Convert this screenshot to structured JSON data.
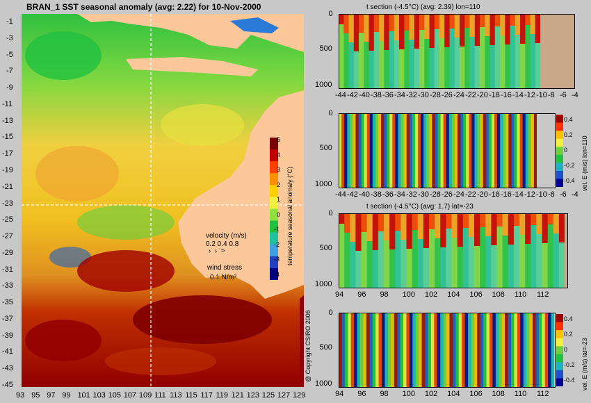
{
  "map": {
    "title": "BRAN_1 SST seasonal anomaly (avg: 2.22) for 10-Nov-2000",
    "lat_ticks": [
      "-1",
      "-3",
      "-5",
      "-7",
      "-9",
      "-11",
      "-13",
      "-15",
      "-17",
      "-19",
      "-21",
      "-23",
      "-25",
      "-27",
      "-29",
      "-31",
      "-33",
      "-35",
      "-37",
      "-39",
      "-41",
      "-43",
      "-45"
    ],
    "lon_ticks": [
      "93",
      "95",
      "97",
      "99",
      "101",
      "103",
      "105",
      "107",
      "109",
      "111",
      "113",
      "115",
      "117",
      "119",
      "121",
      "123",
      "125",
      "127",
      "129"
    ],
    "colorbar": {
      "label": "temperature seasonal anomaly (°C)",
      "ticks": [
        "5",
        "4",
        "3",
        "2",
        "1",
        "0",
        "-1",
        "-2",
        "-3",
        "-4"
      ],
      "colors": [
        "#7a0000",
        "#c00000",
        "#ff4000",
        "#ff9000",
        "#ffd000",
        "#f0f040",
        "#90e040",
        "#20c040",
        "#20c0a0",
        "#40a0e0",
        "#2040c0",
        "#000080"
      ]
    },
    "legend": {
      "velocity_label": "velocity (m/s)",
      "velocity_values": "0.2 0.4 0.8",
      "wind_label": "wind stress",
      "wind_value": "0.1 N/m²"
    },
    "land_color": "#fcc89a",
    "copyright": "@ Copyright CSIRO 2006"
  },
  "panels": [
    {
      "title": "t section (-4.5°C) (avg: 2.39) lon=110",
      "y_ticks": [
        "0",
        "500",
        "1000"
      ],
      "x_ticks": [
        "-44",
        "-42",
        "-40",
        "-38",
        "-36",
        "-34",
        "-32",
        "-30",
        "-28",
        "-26",
        "-24",
        "-22",
        "-20",
        "-18",
        "-16",
        "-14",
        "-12",
        "-10",
        "-8",
        "-6",
        "-4"
      ]
    },
    {
      "title": "",
      "side_label": "vel. E (m/s) lon=110",
      "y_ticks": [
        "0",
        "500",
        "1000"
      ],
      "x_ticks": [
        "-44",
        "-42",
        "-40",
        "-38",
        "-36",
        "-34",
        "-32",
        "-30",
        "-28",
        "-26",
        "-24",
        "-22",
        "-20",
        "-18",
        "-16",
        "-14",
        "-12",
        "-10",
        "-8",
        "-6",
        "-4"
      ],
      "cb_ticks": [
        "0.4",
        "0.2",
        "0",
        "-0.2",
        "-0.4"
      ]
    },
    {
      "title": "t section (-4.5°C) (avg: 1.7) lat=-23",
      "y_ticks": [
        "0",
        "500",
        "1000"
      ],
      "x_ticks": [
        "94",
        "96",
        "98",
        "100",
        "102",
        "104",
        "106",
        "108",
        "110",
        "112"
      ]
    },
    {
      "title": "",
      "side_label": "vel. E (m/s) lat=-23",
      "y_ticks": [
        "0",
        "500",
        "1000"
      ],
      "x_ticks": [
        "94",
        "96",
        "98",
        "100",
        "102",
        "104",
        "106",
        "108",
        "110",
        "112"
      ],
      "cb_ticks": [
        "0.4",
        "0.2",
        "0",
        "-0.2",
        "-0.4"
      ]
    }
  ]
}
